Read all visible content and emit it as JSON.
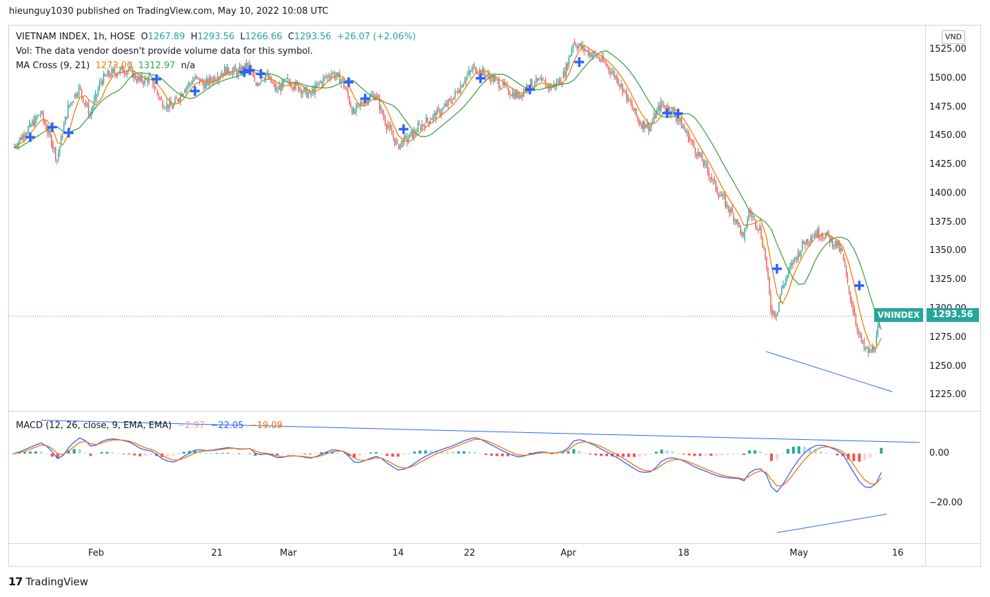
{
  "publish_line": "hieunguy1030 published on TradingView.com, May 10, 2022 10:08 UTC",
  "legend": {
    "symbol": "VIETNAM INDEX, 1h, HOSE",
    "o_label": "O",
    "o_value": "1267.89",
    "h_label": "H",
    "h_value": "1293.56",
    "l_label": "L",
    "l_value": "1266.66",
    "c_label": "C",
    "c_value": "1293.56",
    "change": "+26.07 (+2.06%)",
    "vol_note": "Vol: The data vendor doesn't provide volume data for this symbol.",
    "ma_name": "MA Cross (9, 21)",
    "ma_fast": "1273.00",
    "ma_slow": "1312.97",
    "ma_na": "n/a",
    "macd_name": "MACD (12, 26, close, 9, EMA, EMA)",
    "macd_hist": "−2.97",
    "macd_line": "−22.05",
    "macd_signal": "−19.09"
  },
  "currency": "VND",
  "last_price_tag": {
    "name": "VNINDEX",
    "price": "1293.56"
  },
  "brand": {
    "logo": "17",
    "name": "TradingView"
  },
  "colors": {
    "up": "#26a69a",
    "down": "#ef5350",
    "ma_fast": "#f57c00",
    "ma_slow": "#43a047",
    "macd": "#2962ff",
    "signal": "#ff6d00",
    "cross": "#2962ff",
    "trend": "#2962ff"
  },
  "chart_data": {
    "type": "candlestick",
    "symbol": "VNINDEX",
    "interval": "1h",
    "price_ticks": [
      "1525.00",
      "1500.00",
      "1475.00",
      "1450.00",
      "1425.00",
      "1400.00",
      "1375.00",
      "1350.00",
      "1325.00",
      "1300.00",
      "1275.00",
      "1250.00",
      "1225.00"
    ],
    "price_range": [
      1212,
      1546
    ],
    "macd_ticks": [
      "0.00",
      "−20.00"
    ],
    "macd_range": [
      -36,
      17
    ],
    "time_labels": [
      {
        "label": "Feb",
        "index": 15
      },
      {
        "label": "21",
        "index": 37
      },
      {
        "label": "Mar",
        "index": 50
      },
      {
        "label": "14",
        "index": 70
      },
      {
        "label": "22",
        "index": 83
      },
      {
        "label": "Apr",
        "index": 101
      },
      {
        "label": "18",
        "index": 122
      },
      {
        "label": "May",
        "index": 143
      },
      {
        "label": "16",
        "index": 161
      }
    ],
    "index_range": [
      -1,
      166
    ],
    "close_anchors": [
      [
        0,
        1440
      ],
      [
        3,
        1458
      ],
      [
        5,
        1470
      ],
      [
        7,
        1445
      ],
      [
        8,
        1430
      ],
      [
        10,
        1475
      ],
      [
        12,
        1492
      ],
      [
        14,
        1468
      ],
      [
        16,
        1498
      ],
      [
        18,
        1505
      ],
      [
        21,
        1508
      ],
      [
        23,
        1498
      ],
      [
        25,
        1500
      ],
      [
        27,
        1480
      ],
      [
        29,
        1475
      ],
      [
        31,
        1490
      ],
      [
        33,
        1500
      ],
      [
        35,
        1495
      ],
      [
        37,
        1502
      ],
      [
        39,
        1508
      ],
      [
        41,
        1505
      ],
      [
        43,
        1512
      ],
      [
        44,
        1495
      ],
      [
        46,
        1503
      ],
      [
        48,
        1490
      ],
      [
        50,
        1498
      ],
      [
        52,
        1492
      ],
      [
        54,
        1486
      ],
      [
        56,
        1497
      ],
      [
        58,
        1505
      ],
      [
        60,
        1498
      ],
      [
        62,
        1470
      ],
      [
        64,
        1482
      ],
      [
        66,
        1486
      ],
      [
        68,
        1460
      ],
      [
        70,
        1442
      ],
      [
        72,
        1448
      ],
      [
        74,
        1458
      ],
      [
        76,
        1465
      ],
      [
        78,
        1472
      ],
      [
        80,
        1482
      ],
      [
        82,
        1498
      ],
      [
        84,
        1510
      ],
      [
        86,
        1503
      ],
      [
        88,
        1498
      ],
      [
        90,
        1490
      ],
      [
        92,
        1485
      ],
      [
        94,
        1495
      ],
      [
        96,
        1497
      ],
      [
        98,
        1492
      ],
      [
        100,
        1500
      ],
      [
        101,
        1512
      ],
      [
        102,
        1532
      ],
      [
        104,
        1525
      ],
      [
        106,
        1520
      ],
      [
        108,
        1512
      ],
      [
        110,
        1500
      ],
      [
        112,
        1482
      ],
      [
        114,
        1462
      ],
      [
        116,
        1458
      ],
      [
        118,
        1478
      ],
      [
        120,
        1472
      ],
      [
        122,
        1458
      ],
      [
        124,
        1440
      ],
      [
        126,
        1425
      ],
      [
        128,
        1405
      ],
      [
        130,
        1390
      ],
      [
        132,
        1375
      ],
      [
        133,
        1360
      ],
      [
        134,
        1385
      ],
      [
        136,
        1370
      ],
      [
        137,
        1345
      ],
      [
        138,
        1300
      ],
      [
        139,
        1295
      ],
      [
        140,
        1318
      ],
      [
        142,
        1340
      ],
      [
        144,
        1357
      ],
      [
        146,
        1366
      ],
      [
        148,
        1364
      ],
      [
        150,
        1355
      ],
      [
        151,
        1348
      ],
      [
        152,
        1320
      ],
      [
        153,
        1300
      ],
      [
        154,
        1278
      ],
      [
        155,
        1265
      ],
      [
        156,
        1262
      ],
      [
        157,
        1268
      ],
      [
        158,
        1293.56
      ]
    ],
    "ma_fast_label": "MA 9",
    "ma_slow_label": "MA 21",
    "macd_series": [
      "MACD",
      "Signal",
      "Histogram"
    ],
    "cross_marks": [
      3,
      7,
      10,
      26,
      33,
      42,
      43,
      45,
      61,
      64,
      71,
      85,
      94,
      103,
      119,
      121,
      139,
      154
    ],
    "trend_lines": [
      {
        "pane": "price",
        "from": [
          137,
          1263
        ],
        "to": [
          160,
          1228
        ]
      },
      {
        "pane": "macd",
        "from": [
          5,
          13.5
        ],
        "to": [
          165,
          4.5
        ]
      },
      {
        "pane": "macd",
        "from": [
          139,
          -32
        ],
        "to": [
          159,
          -24.5
        ]
      }
    ]
  }
}
